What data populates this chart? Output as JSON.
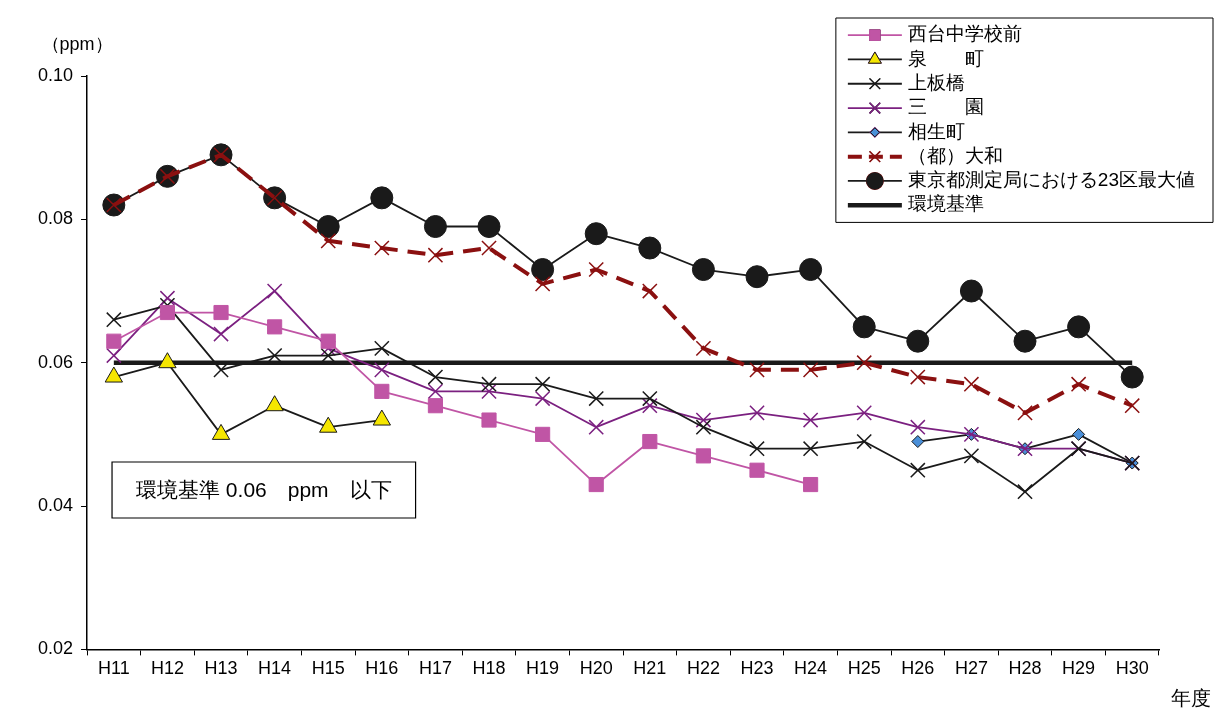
{
  "chart_data": {
    "type": "line",
    "ylabel": "（ppm）",
    "xlabel": "年度",
    "categories": [
      "H11",
      "H12",
      "H13",
      "H14",
      "H15",
      "H16",
      "H17",
      "H18",
      "H19",
      "H20",
      "H21",
      "H22",
      "H23",
      "H24",
      "H25",
      "H26",
      "H27",
      "H28",
      "H29",
      "H30"
    ],
    "ylim": [
      0.02,
      0.1
    ],
    "yticks": [
      {
        "value": 0.02,
        "label": "0.02"
      },
      {
        "value": 0.04,
        "label": "0.04"
      },
      {
        "value": 0.06,
        "label": "0.06"
      },
      {
        "value": 0.08,
        "label": "0.08"
      },
      {
        "value": 0.1,
        "label": "0.10"
      }
    ],
    "grid": false,
    "legend": "top right",
    "annotations": [
      "環境基準 0.06　ppm　以下"
    ],
    "series": [
      {
        "name": "西台中学校前",
        "color": "#c055a5",
        "marker": "square",
        "values": [
          0.063,
          0.067,
          0.067,
          0.065,
          0.063,
          0.056,
          0.054,
          0.052,
          0.05,
          0.043,
          0.049,
          0.047,
          0.045,
          0.043,
          null,
          null,
          null,
          null,
          null,
          null
        ]
      },
      {
        "name": "泉　　町",
        "color": "#1a1a1a",
        "marker": "triangle",
        "values": [
          0.058,
          0.06,
          0.05,
          0.054,
          0.051,
          0.052,
          null,
          null,
          null,
          null,
          null,
          null,
          null,
          null,
          null,
          null,
          null,
          null,
          null,
          null
        ]
      },
      {
        "name": "上板橋",
        "color": "#1a1a1a",
        "marker": "cross",
        "values": [
          0.066,
          0.068,
          0.059,
          0.061,
          0.061,
          0.062,
          0.058,
          0.057,
          0.057,
          0.055,
          0.055,
          0.051,
          0.048,
          0.048,
          0.049,
          0.045,
          0.047,
          0.042,
          0.048,
          0.046
        ]
      },
      {
        "name": "三　　園",
        "color": "#7b2080",
        "marker": "cross",
        "values": [
          0.061,
          0.069,
          0.064,
          0.07,
          0.062,
          0.059,
          0.056,
          0.056,
          0.055,
          0.051,
          0.054,
          0.052,
          0.053,
          0.052,
          0.053,
          0.051,
          0.05,
          0.048,
          0.048,
          0.046
        ]
      },
      {
        "name": "相生町",
        "color": "#1a1a1a",
        "marker": "diamond",
        "values": [
          null,
          null,
          null,
          null,
          null,
          null,
          null,
          null,
          null,
          null,
          null,
          null,
          null,
          null,
          null,
          0.049,
          0.05,
          0.048,
          0.05,
          0.046
        ]
      },
      {
        "name": "（都）大和",
        "color": "#8b1010",
        "marker": "cross",
        "line_style": "dashed",
        "values": [
          0.082,
          0.086,
          0.089,
          0.083,
          0.077,
          0.076,
          0.075,
          0.076,
          0.071,
          0.073,
          0.07,
          0.062,
          0.059,
          0.059,
          0.06,
          0.058,
          0.057,
          0.053,
          0.057,
          0.054
        ]
      },
      {
        "name": "東京都測定局における23区最大値",
        "color": "#1a1a1a",
        "marker": "circle",
        "values": [
          0.082,
          0.086,
          0.089,
          0.083,
          0.079,
          0.083,
          0.079,
          0.079,
          0.073,
          0.078,
          0.076,
          0.073,
          0.072,
          0.073,
          0.065,
          0.063,
          0.07,
          0.063,
          0.065,
          0.058
        ]
      },
      {
        "name": "環境基準",
        "color": "#1a1a1a",
        "marker": "none",
        "values": [
          0.06,
          0.06,
          0.06,
          0.06,
          0.06,
          0.06,
          0.06,
          0.06,
          0.06,
          0.06,
          0.06,
          0.06,
          0.06,
          0.06,
          0.06,
          0.06,
          0.06,
          0.06,
          0.06,
          0.06
        ]
      }
    ]
  }
}
